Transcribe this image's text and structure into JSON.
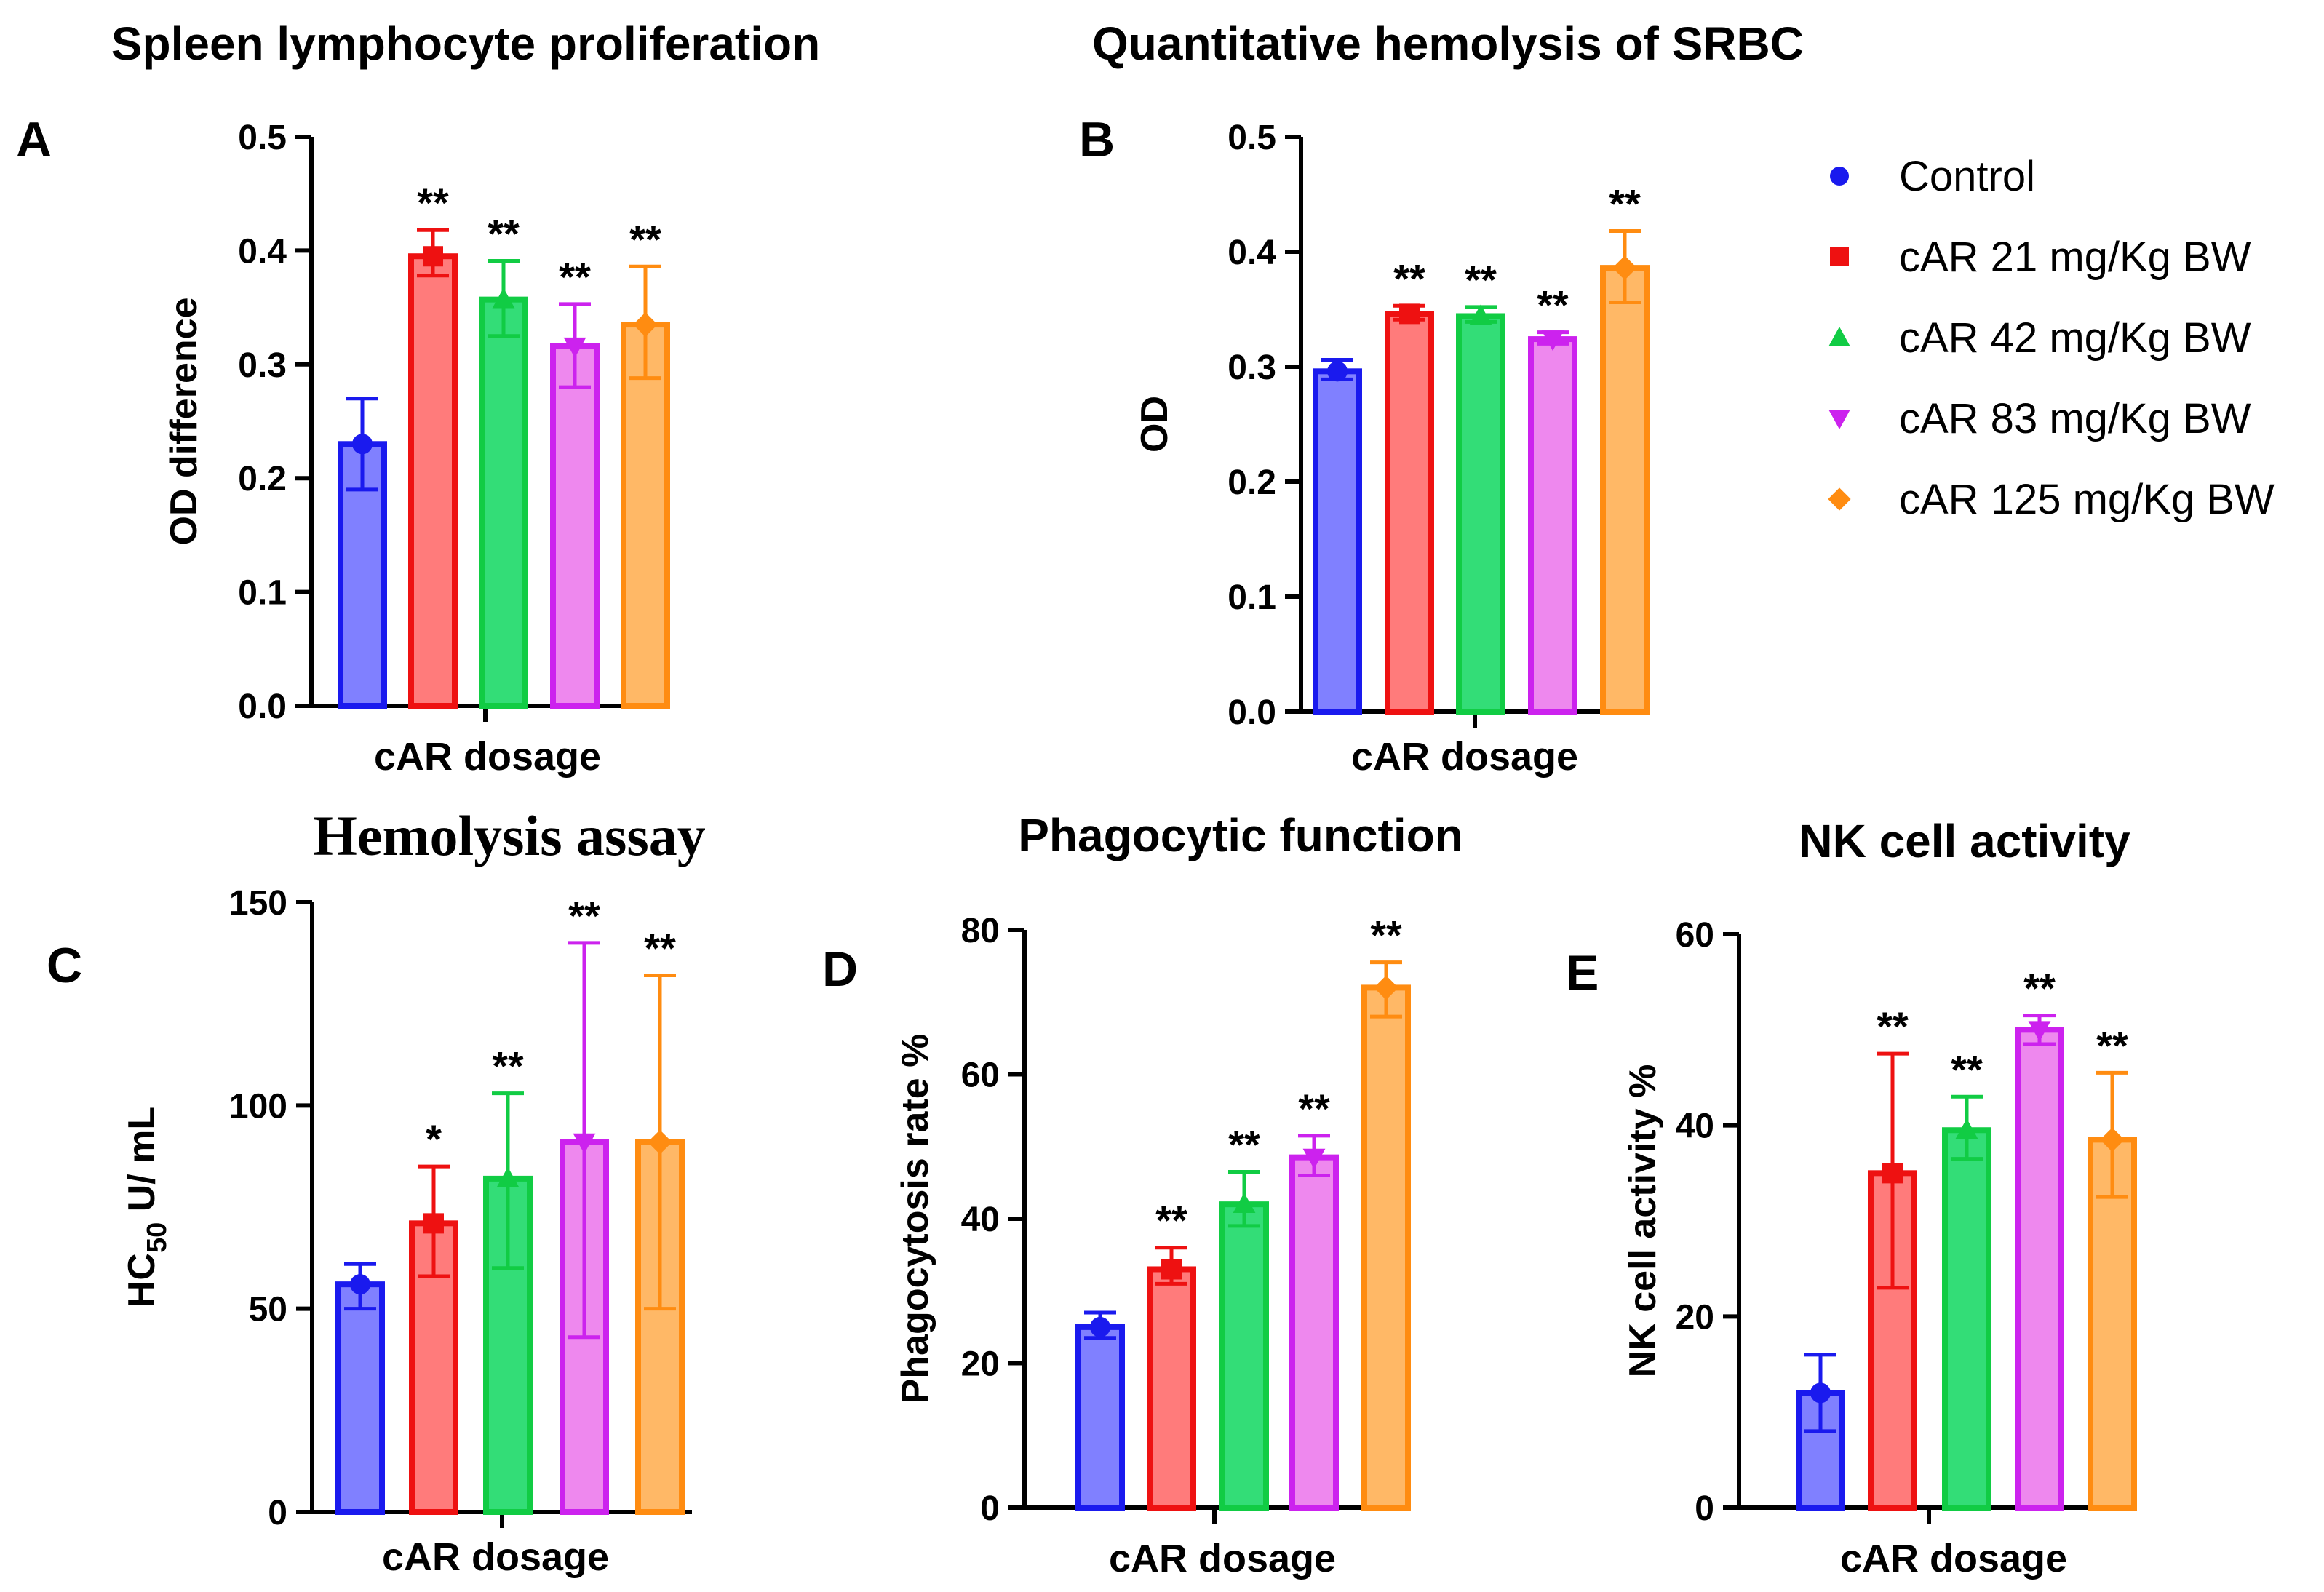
{
  "legend": {
    "entries": [
      {
        "label": "Control",
        "color": "#1a1aee",
        "marker": "circle"
      },
      {
        "label": "cAR 21 mg/Kg BW",
        "color": "#ee1111",
        "marker": "square"
      },
      {
        "label": "cAR 42 mg/Kg BW",
        "color": "#11cc44",
        "marker": "triangle-up"
      },
      {
        "label": "cAR 83 mg/Kg BW",
        "color": "#cc22ee",
        "marker": "triangle-down"
      },
      {
        "label": "cAR 125 mg/Kg BW",
        "color": "#ff8c11",
        "marker": "diamond"
      }
    ]
  },
  "fill_colors": [
    "#8080ff",
    "#ff7b7b",
    "#33dd77",
    "#ee88ee",
    "#ffb866"
  ],
  "chart_data": [
    {
      "id": "A",
      "panel_letter": "A",
      "type": "bar",
      "title": "Spleen lymphocyte proliferation",
      "ylabel": "OD difference",
      "ylabel_sub": "",
      "ylabel_post": "",
      "xlabel": "cAR dosage",
      "ylim": [
        0,
        0.5
      ],
      "yticks": [
        "0.0",
        "0.1",
        "0.2",
        "0.3",
        "0.4",
        "0.5"
      ],
      "values": [
        0.23,
        0.395,
        0.357,
        0.316,
        0.335
      ],
      "err_hi": [
        0.27,
        0.418,
        0.391,
        0.353,
        0.386
      ],
      "err_lo": [
        0.19,
        0.378,
        0.325,
        0.28,
        0.288
      ],
      "stars": [
        "",
        "**",
        "**",
        "**",
        "**"
      ]
    },
    {
      "id": "B",
      "panel_letter": "B",
      "type": "bar",
      "title": "Quantitative hemolysis of SRBC",
      "ylabel": "OD",
      "ylabel_sub": "",
      "ylabel_post": "",
      "xlabel": "cAR dosage",
      "ylim": [
        0,
        0.5
      ],
      "yticks": [
        "0.0",
        "0.1",
        "0.2",
        "0.3",
        "0.4",
        "0.5"
      ],
      "values": [
        0.296,
        0.346,
        0.344,
        0.324,
        0.386
      ],
      "err_hi": [
        0.306,
        0.353,
        0.352,
        0.33,
        0.418
      ],
      "err_lo": [
        0.289,
        0.341,
        0.339,
        0.32,
        0.356
      ],
      "stars": [
        "",
        "**",
        "**",
        "**",
        "**"
      ]
    },
    {
      "id": "C",
      "panel_letter": "C",
      "type": "bar",
      "title": "Hemolysis assay",
      "ylabel": "HC",
      "ylabel_sub": "50",
      "ylabel_post": " U/ mL",
      "xlabel": "cAR dosage",
      "ylim": [
        0,
        150
      ],
      "yticks": [
        "0",
        "50",
        "100",
        "150"
      ],
      "values": [
        56,
        71,
        82,
        91,
        91
      ],
      "err_hi": [
        61,
        85,
        103,
        140,
        132
      ],
      "err_lo": [
        50,
        58,
        60,
        43,
        50
      ],
      "stars": [
        "",
        "*",
        "**",
        "**",
        "**"
      ]
    },
    {
      "id": "D",
      "panel_letter": "D",
      "type": "bar",
      "title": "Phagocytic function",
      "ylabel": "Phagocytosis rate %",
      "ylabel_sub": "",
      "ylabel_post": "",
      "xlabel": "cAR dosage",
      "ylim": [
        0,
        80
      ],
      "yticks": [
        "0",
        "20",
        "40",
        "60",
        "80"
      ],
      "values": [
        25,
        33,
        42,
        48.5,
        72
      ],
      "err_hi": [
        27,
        36,
        46.5,
        51.5,
        75.5
      ],
      "err_lo": [
        23.5,
        31,
        39,
        46,
        68
      ],
      "stars": [
        "",
        "**",
        "**",
        "**",
        "**"
      ]
    },
    {
      "id": "E",
      "panel_letter": "E",
      "type": "bar",
      "title": "NK cell activity",
      "ylabel": "NK cell activity %",
      "ylabel_sub": "",
      "ylabel_post": "",
      "xlabel": "cAR dosage",
      "ylim": [
        0,
        60
      ],
      "yticks": [
        "0",
        "20",
        "40",
        "60"
      ],
      "values": [
        12,
        35,
        39.5,
        50,
        38.5
      ],
      "err_hi": [
        16,
        47.5,
        43,
        51.5,
        45.5
      ],
      "err_lo": [
        8,
        23,
        36.5,
        48.5,
        32.5
      ],
      "stars": [
        "",
        "**",
        "**",
        "**",
        "**"
      ]
    }
  ]
}
